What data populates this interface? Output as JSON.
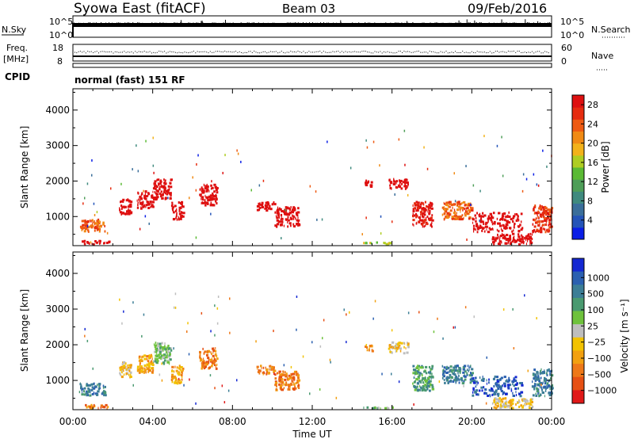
{
  "header": {
    "title": "Syowa East (fitACF)",
    "beam": "Beam 03",
    "date": "09/Feb/2016"
  },
  "top_panels": {
    "nsky_label": "N.Sky",
    "nsearch_label": "N.Search",
    "freq_label_line1": "Freq.",
    "freq_label_line2": "[MHz]",
    "nave_label": "Nave",
    "cpid_label": "CPID",
    "cpid_text": "normal (fast) 151 RF",
    "noise_left_ticks": [
      "10^5",
      "10^0"
    ],
    "noise_right_ticks": [
      "10^5",
      "10^0"
    ],
    "freq_left_ticks": [
      "18",
      "8"
    ],
    "nave_right_ticks": [
      "60",
      "0"
    ]
  },
  "colors": {
    "power_scale": [
      "#0a1ee6",
      "#2454b8",
      "#3a6e9a",
      "#3f8a7e",
      "#4e9e58",
      "#5aba34",
      "#aecd22",
      "#f2b21a",
      "#f08a14",
      "#ee5a12",
      "#e62c10",
      "#de1010"
    ],
    "velocity_scale": [
      "#1428d2",
      "#2b60b0",
      "#3c7e96",
      "#4a9a70",
      "#6ec23c",
      "#bebebe",
      "#f2c200",
      "#f2a010",
      "#ee7818",
      "#e65014",
      "#e01818"
    ]
  },
  "chart_data": [
    {
      "type": "heatmap",
      "name": "power",
      "xlabel": "Time UT",
      "ylabel": "Slant Range [km]",
      "x_range_hours": [
        0,
        24
      ],
      "ylim": [
        180,
        4600
      ],
      "x_ticks": [
        "00:00",
        "04:00",
        "08:00",
        "12:00",
        "16:00",
        "20:00",
        "00:00"
      ],
      "y_ticks": [
        1000,
        2000,
        3000,
        4000
      ],
      "colorbar_label": "Power [dB]",
      "colorbar_ticks": [
        "4",
        "8",
        "12",
        "16",
        "20",
        "24",
        "28"
      ],
      "colorbar_range": [
        0,
        30
      ],
      "clusters": [
        {
          "t0": 0.3,
          "t1": 1.6,
          "r0": 560,
          "r1": 900,
          "v": 9
        },
        {
          "t0": 0.4,
          "t1": 1.8,
          "r0": 200,
          "r1": 300,
          "v": 12
        },
        {
          "t0": 2.3,
          "t1": 2.9,
          "r0": 1050,
          "r1": 1500,
          "v": 14
        },
        {
          "t0": 3.2,
          "t1": 4.0,
          "r0": 1200,
          "r1": 1700,
          "v": 15
        },
        {
          "t0": 4.0,
          "t1": 4.9,
          "r0": 1450,
          "r1": 2050,
          "v": 13
        },
        {
          "t0": 4.9,
          "t1": 5.5,
          "r0": 900,
          "r1": 1400,
          "v": 15
        },
        {
          "t0": 6.3,
          "t1": 7.2,
          "r0": 1300,
          "r1": 1900,
          "v": 14
        },
        {
          "t0": 9.2,
          "t1": 10.1,
          "r0": 1150,
          "r1": 1400,
          "v": 13
        },
        {
          "t0": 10.1,
          "t1": 11.3,
          "r0": 700,
          "r1": 1250,
          "v": 18
        },
        {
          "t0": 14.6,
          "t1": 15.0,
          "r0": 1800,
          "r1": 2000,
          "v": 20
        },
        {
          "t0": 15.8,
          "t1": 16.8,
          "r0": 1750,
          "r1": 2050,
          "v": 14
        },
        {
          "t0": 17.0,
          "t1": 18.0,
          "r0": 700,
          "r1": 1400,
          "v": 11
        },
        {
          "t0": 18.5,
          "t1": 20.0,
          "r0": 900,
          "r1": 1400,
          "v": 9
        },
        {
          "t0": 20.0,
          "t1": 22.5,
          "r0": 550,
          "r1": 1100,
          "v": 12
        },
        {
          "t0": 21.0,
          "t1": 23.0,
          "r0": 200,
          "r1": 500,
          "v": 21
        },
        {
          "t0": 23.0,
          "t1": 24.0,
          "r0": 550,
          "r1": 1300,
          "v": 10
        },
        {
          "t0": 14.5,
          "t1": 16.0,
          "r0": 200,
          "r1": 260,
          "v": 6
        }
      ]
    },
    {
      "type": "heatmap",
      "name": "velocity",
      "xlabel": "Time UT",
      "ylabel": "Slant Range [km]",
      "x_range_hours": [
        0,
        24
      ],
      "ylim": [
        180,
        4600
      ],
      "x_ticks": [
        "00:00",
        "04:00",
        "08:00",
        "12:00",
        "16:00",
        "20:00",
        "00:00"
      ],
      "y_ticks": [
        1000,
        2000,
        3000,
        4000
      ],
      "colorbar_label": "Velocity [m s⁻¹]",
      "colorbar_ticks": [
        "1000",
        "500",
        "100",
        "25",
        "−25",
        "−100",
        "−500",
        "−1000"
      ],
      "clusters": [
        {
          "t0": 0.3,
          "t1": 1.6,
          "r0": 560,
          "r1": 900,
          "v": 2
        },
        {
          "t0": 0.4,
          "t1": 1.8,
          "r0": 200,
          "r1": 300,
          "v": 8
        },
        {
          "t0": 2.3,
          "t1": 2.9,
          "r0": 1050,
          "r1": 1500,
          "v": 6
        },
        {
          "t0": 3.2,
          "t1": 4.0,
          "r0": 1200,
          "r1": 1700,
          "v": 7
        },
        {
          "t0": 4.0,
          "t1": 4.9,
          "r0": 1450,
          "r1": 2050,
          "v": 4
        },
        {
          "t0": 4.9,
          "t1": 5.5,
          "r0": 900,
          "r1": 1400,
          "v": 7
        },
        {
          "t0": 6.3,
          "t1": 7.2,
          "r0": 1300,
          "r1": 1900,
          "v": 8
        },
        {
          "t0": 9.2,
          "t1": 10.1,
          "r0": 1150,
          "r1": 1400,
          "v": 8
        },
        {
          "t0": 10.1,
          "t1": 11.3,
          "r0": 700,
          "r1": 1250,
          "v": 8
        },
        {
          "t0": 14.6,
          "t1": 15.0,
          "r0": 1800,
          "r1": 2000,
          "v": 7
        },
        {
          "t0": 15.8,
          "t1": 16.8,
          "r0": 1750,
          "r1": 2050,
          "v": 6
        },
        {
          "t0": 17.0,
          "t1": 18.0,
          "r0": 700,
          "r1": 1400,
          "v": 3
        },
        {
          "t0": 18.5,
          "t1": 20.0,
          "r0": 900,
          "r1": 1400,
          "v": 2
        },
        {
          "t0": 20.0,
          "t1": 22.5,
          "r0": 550,
          "r1": 1100,
          "v": 1
        },
        {
          "t0": 21.0,
          "t1": 23.0,
          "r0": 200,
          "r1": 500,
          "v": 6
        },
        {
          "t0": 23.0,
          "t1": 24.0,
          "r0": 550,
          "r1": 1300,
          "v": 2
        },
        {
          "t0": 14.5,
          "t1": 16.0,
          "r0": 200,
          "r1": 260,
          "v": 4
        }
      ]
    }
  ]
}
